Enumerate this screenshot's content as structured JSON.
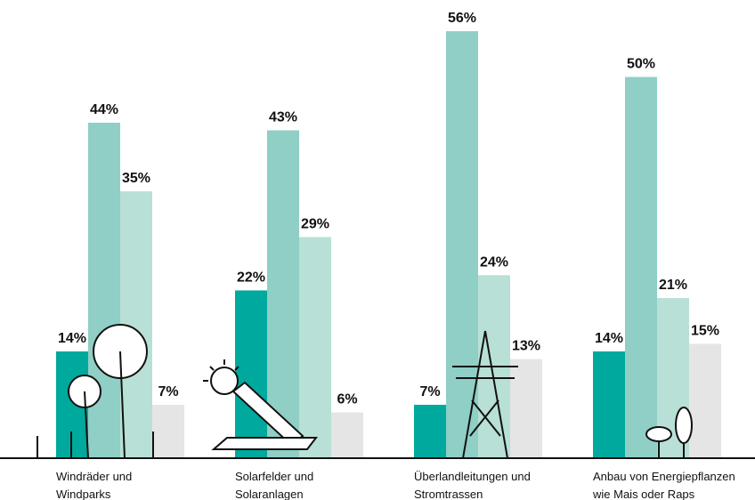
{
  "chart_data": {
    "type": "bar",
    "categories": [
      "Windräder und Windparks",
      "Solarfelder und Solaranlagen",
      "Überlandleitungen und Stromtrassen",
      "Anbau von Energiepflanzen wie Mais oder Raps"
    ],
    "series": [
      {
        "color": "#00a99d",
        "values": [
          14,
          22,
          7,
          14
        ],
        "value_labels": [
          "14%",
          "22%",
          "7%",
          "14%"
        ]
      },
      {
        "color": "#8fcfc5",
        "values": [
          44,
          43,
          56,
          50
        ],
        "value_labels": [
          "44%",
          "43%",
          "56%",
          "50%"
        ]
      },
      {
        "color": "#b8e0d6",
        "values": [
          35,
          29,
          24,
          21
        ],
        "value_labels": [
          "35%",
          "29%",
          "24%",
          "21%"
        ]
      },
      {
        "color": "#e5e5e5",
        "values": [
          7,
          6,
          13,
          15
        ],
        "value_labels": [
          "7%",
          "6%",
          "13%",
          "15%"
        ]
      }
    ]
  }
}
